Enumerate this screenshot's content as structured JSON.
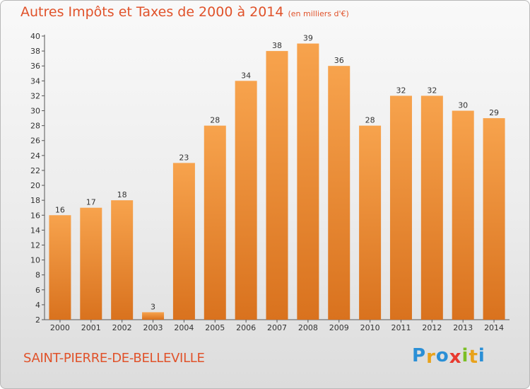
{
  "header": {
    "title": "Autres Impôts et Taxes de 2000 à 2014",
    "subtitle": "(en milliers d'€)"
  },
  "footer": {
    "place": "SAINT-PIERRE-DE-BELLEVILLE",
    "logo_letters": [
      "P",
      "r",
      "o",
      "x",
      "i",
      "t",
      "i"
    ],
    "logo_colors": [
      "#2a8fd6",
      "#e8a21b",
      "#2a8fd6",
      "#e83a2f",
      "#7bbf26",
      "#e8a21b",
      "#2a8fd6"
    ]
  },
  "colors": {
    "bar_top": "#f7a34d",
    "bar_bottom": "#d9721e",
    "accent": "#e0522a"
  },
  "chart_data": {
    "type": "bar",
    "categories": [
      "2000",
      "2001",
      "2002",
      "2003",
      "2004",
      "2005",
      "2006",
      "2007",
      "2008",
      "2009",
      "2010",
      "2011",
      "2012",
      "2013",
      "2014"
    ],
    "values": [
      16,
      17,
      18,
      3,
      23,
      28,
      34,
      38,
      39,
      36,
      28,
      32,
      32,
      30,
      29
    ],
    "title": "Autres Impôts et Taxes de 2000 à 2014",
    "subtitle": "(en milliers d'€)",
    "ylim": [
      2,
      40
    ],
    "yticks": [
      2,
      4,
      6,
      8,
      10,
      12,
      14,
      16,
      18,
      20,
      22,
      24,
      26,
      28,
      30,
      32,
      34,
      36,
      38,
      40
    ],
    "grid": false
  }
}
